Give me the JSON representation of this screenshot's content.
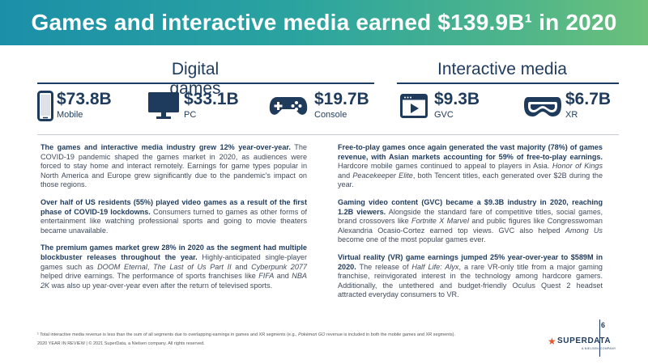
{
  "header": {
    "title": "Games and interactive media earned $139.9B¹ in 2020",
    "colors": {
      "gradient_start": "#1b8fa8",
      "gradient_end": "#6cc07a"
    }
  },
  "sections": {
    "digital_games": "Digital games",
    "interactive_media": "Interactive media"
  },
  "stats": {
    "mobile": {
      "value": "$73.8B",
      "label": "Mobile",
      "icon": "smartphone-icon"
    },
    "pc": {
      "value": "$33.1B",
      "label": "PC",
      "icon": "monitor-icon"
    },
    "console": {
      "value": "$19.7B",
      "label": "Console",
      "icon": "gamepad-icon"
    },
    "gvc": {
      "value": "$9.3B",
      "label": "GVC",
      "icon": "video-player-icon"
    },
    "xr": {
      "value": "$6.7B",
      "label": "XR",
      "icon": "vr-headset-icon"
    }
  },
  "left": {
    "p1_bold": "The games and interactive media industry grew 12% year-over-year.",
    "p1_text": " The COVID-19 pandemic shaped the games market in 2020, as audiences were forced to stay home and interact remotely. Earnings for game types popular in North America and Europe grew significantly due to the pandemic's impact on those regions.",
    "p2_bold": "Over half of US residents (55%) played video games as a result of the first phase of COVID-19 lockdowns.",
    "p2_text": " Consumers turned to games as other forms of entertainment like watching professional sports and going to movie theaters became unavailable.",
    "p3_bold": "The premium games market grew 28% in 2020 as the segment had multiple blockbuster releases throughout the year.",
    "p3_a": " Highly-anticipated single-player games such as ",
    "p3_i1": "DOOM Eternal",
    "p3_b": ", ",
    "p3_i2": "The Last of Us Part II",
    "p3_c": " and ",
    "p3_i3": "Cyberpunk 2077",
    "p3_d": " helped drive earnings. The performance of sports franchises like ",
    "p3_i4": "FIFA",
    "p3_e": " and ",
    "p3_i5": "NBA 2K",
    "p3_f": " was also up year-over-year even after the return of televised sports."
  },
  "right": {
    "p1_bold": "Free-to-play games once again generated the vast majority (78%) of games revenue, with Asian markets accounting for 59% of free-to-play earnings.",
    "p1_a": " Hardcore mobile games continued to appeal to players in Asia. ",
    "p1_i1": "Honor of Kings",
    "p1_b": " and ",
    "p1_i2": "Peacekeeper Elite",
    "p1_c": ", both Tencent titles, each generated over $2B during the year.",
    "p2_bold": "Gaming video content (GVC) became a $9.3B industry in 2020, reaching 1.2B viewers.",
    "p2_a": " Alongside the standard fare of competitive titles, social games, brand crossovers like ",
    "p2_i1": "Fortnite X Marvel",
    "p2_b": " and public figures like Congresswoman Alexandria Ocasio-Cortez earned top views. GVC also helped ",
    "p2_i2": "Among Us",
    "p2_c": " become one of the most popular games ever.",
    "p3_bold": "Virtual reality (VR) game earnings jumped 25% year-over-year to $589M in 2020.",
    "p3_a": " The release of ",
    "p3_i1": "Half Life: Alyx",
    "p3_b": ", a rare VR-only title from a major gaming franchise, reinvigorated interest in the technology among hardcore gamers. Additionally, the untethered and budget-friendly Oculus Quest 2 headset attracted everyday consumers to VR."
  },
  "footnote": {
    "a": "¹ Total interactive media revenue is less than the sum of all segments due to overlapping earnings in games and XR segments (e.g., ",
    "i": "Pokémon GO",
    "b": " revenue is included in both the mobile games and XR segments)."
  },
  "footer": "2020 YEAR IN REVIEW | © 2021 SuperData, a Nielsen company. All rights reserved.",
  "page_number": "6",
  "logo": {
    "name": "SUPERDATA",
    "sub": "A NIELSEN COMPANY",
    "star_color": "#e4572e"
  }
}
